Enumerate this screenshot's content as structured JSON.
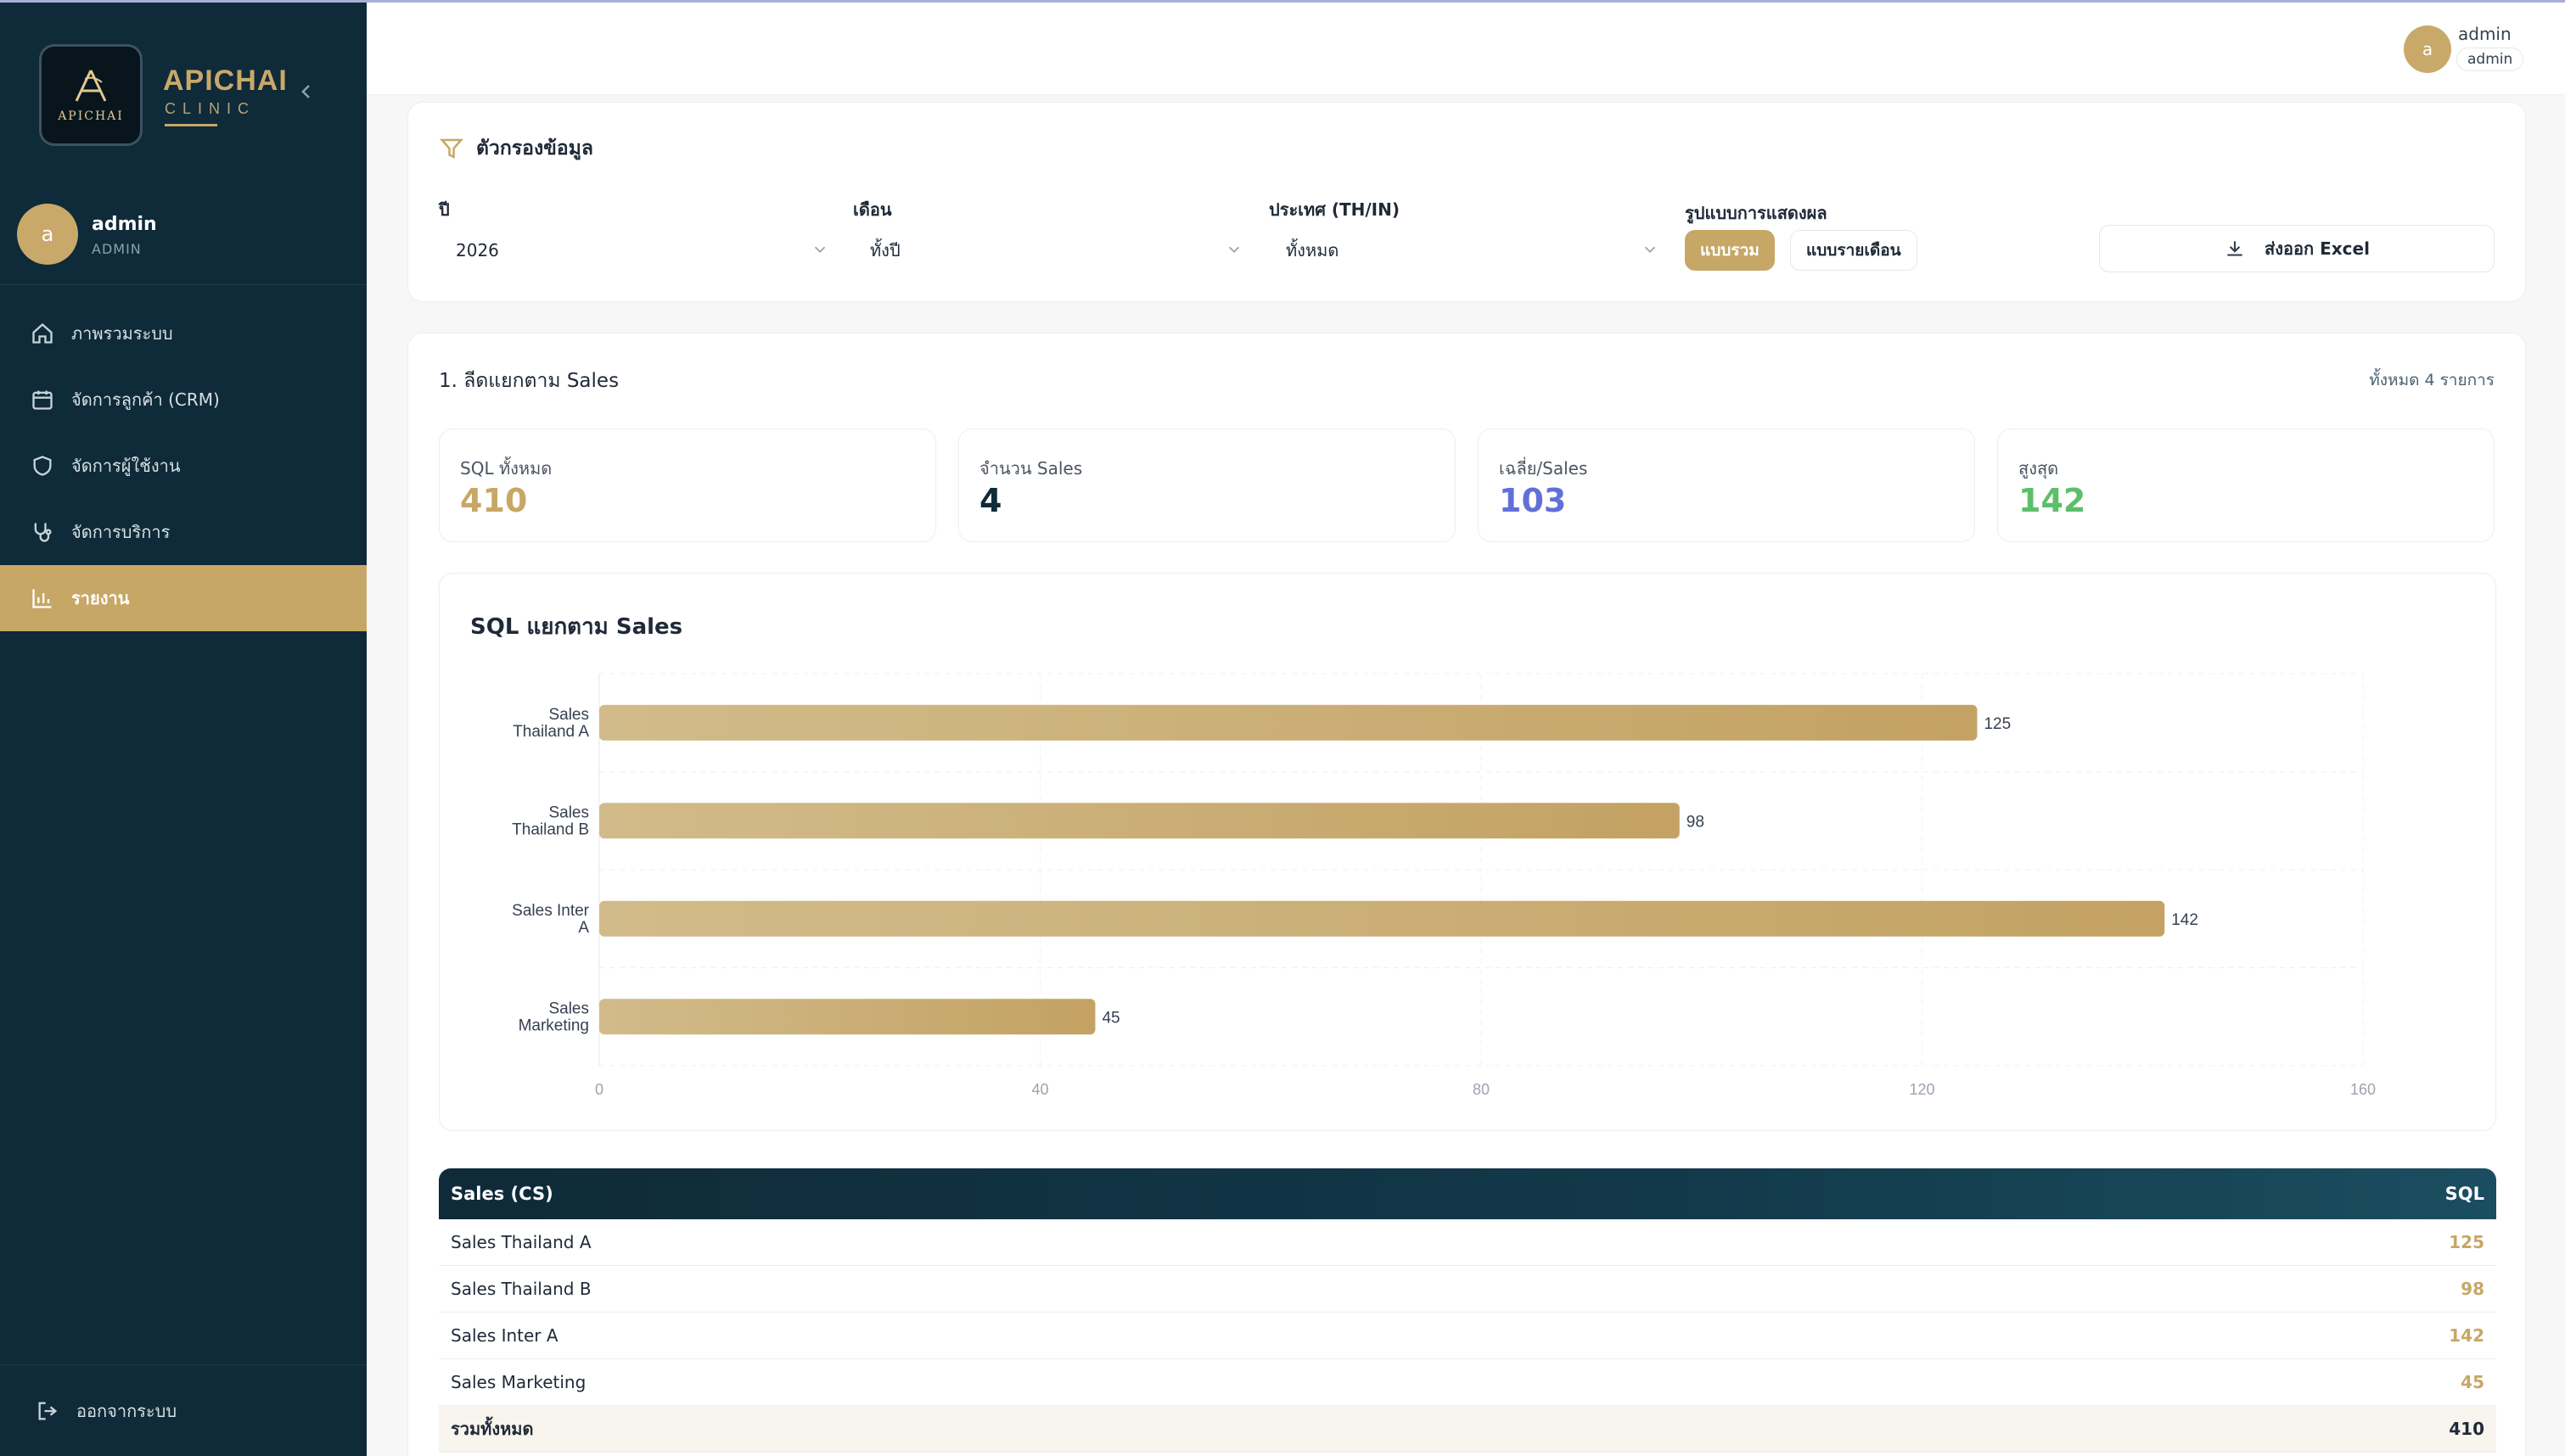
{
  "brand": {
    "name": "APICHAI",
    "sub": "CLINIC",
    "logo_text": "APICHAI"
  },
  "sidebar": {
    "user": {
      "initial": "a",
      "name": "admin",
      "role": "ADMIN"
    },
    "items": [
      {
        "label": "ภาพรวมระบบ",
        "icon": "home-icon"
      },
      {
        "label": "จัดการลูกค้า (CRM)",
        "icon": "calendar-icon"
      },
      {
        "label": "จัดการผู้ใช้งาน",
        "icon": "shield-icon"
      },
      {
        "label": "จัดการบริการ",
        "icon": "stethoscope-icon"
      },
      {
        "label": "รายงาน",
        "icon": "bar-chart-icon",
        "active": true
      }
    ],
    "logout": "ออกจากระบบ"
  },
  "header": {
    "initial": "a",
    "name": "admin",
    "role": "admin"
  },
  "filters": {
    "title": "ตัวกรองข้อมูล",
    "year": {
      "label": "ปี",
      "value": "2026"
    },
    "month": {
      "label": "เดือน",
      "value": "ทั้งปี"
    },
    "country": {
      "label": "ประเทศ (TH/IN)",
      "value": "ทั้งหมด"
    },
    "display": {
      "label": "รูปแบบการแสดงผล",
      "combined": "แบบรวม",
      "monthly": "แบบรายเดือน"
    },
    "export_label": "ส่งออก Excel"
  },
  "section": {
    "title": "1. ลีดแยกตาม Sales",
    "total_count": "ทั้งหมด 4 รายการ"
  },
  "stats": [
    {
      "label": "SQL ทั้งหมด",
      "value": "410",
      "color": "#c7a766"
    },
    {
      "label": "จำนวน Sales",
      "value": "4",
      "color": "#0f2a38"
    },
    {
      "label": "เฉลี่ย/Sales",
      "value": "103",
      "color": "#6170d8"
    },
    {
      "label": "สูงสุด",
      "value": "142",
      "color": "#5cbf6a"
    }
  ],
  "chart_data": {
    "type": "bar",
    "orientation": "horizontal",
    "title": "SQL แยกตาม Sales",
    "categories": [
      "Sales Thailand A",
      "Sales Thailand B",
      "Sales Inter A",
      "Sales Marketing"
    ],
    "category_lines": [
      [
        "Sales",
        "Thailand A"
      ],
      [
        "Sales",
        "Thailand B"
      ],
      [
        "Sales Inter",
        "A"
      ],
      [
        "Sales",
        "Marketing"
      ]
    ],
    "values": [
      125,
      98,
      142,
      45
    ],
    "xlim": [
      0,
      160
    ],
    "xticks": [
      0,
      40,
      80,
      120,
      160
    ],
    "grid": true,
    "color_start": "#d2bb8a",
    "color_end": "#c3a263"
  },
  "table": {
    "headers": [
      "Sales (CS)",
      "SQL"
    ],
    "rows": [
      [
        "Sales Thailand A",
        "125"
      ],
      [
        "Sales Thailand B",
        "98"
      ],
      [
        "Sales Inter A",
        "142"
      ],
      [
        "Sales Marketing",
        "45"
      ]
    ],
    "total": [
      "รวมทั้งหมด",
      "410"
    ]
  }
}
